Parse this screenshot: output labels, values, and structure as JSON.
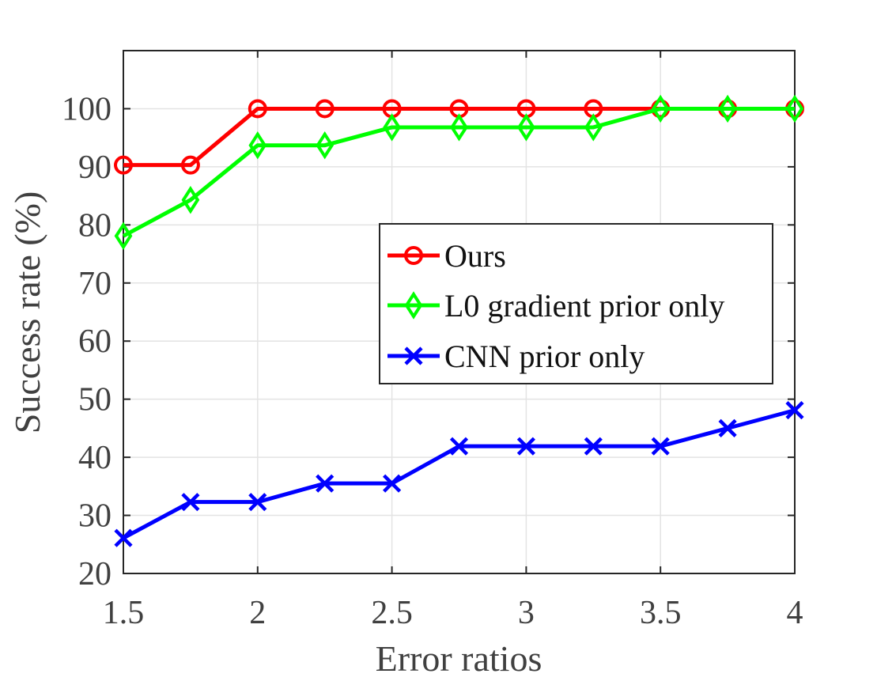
{
  "chart_data": {
    "type": "line",
    "xlabel": "Error ratios",
    "ylabel": "Success rate (%)",
    "xlim": [
      1.5,
      4
    ],
    "ylim": [
      20,
      110
    ],
    "xticks": [
      "1.5",
      "2",
      "2.5",
      "3",
      "3.5",
      "4"
    ],
    "yticks": [
      "20",
      "30",
      "40",
      "50",
      "60",
      "70",
      "80",
      "90",
      "100"
    ],
    "grid": true,
    "legend_position": "center-right",
    "x": [
      1.5,
      1.75,
      2,
      2.25,
      2.5,
      2.75,
      3,
      3.25,
      3.5,
      3.75,
      4
    ],
    "series": [
      {
        "name": "Ours",
        "color": "#ff0000",
        "marker": "circle",
        "values": [
          90.3,
          90.3,
          100,
          100,
          100,
          100,
          100,
          100,
          100,
          100,
          100
        ]
      },
      {
        "name": "L0 gradient prior only",
        "color": "#00ff00",
        "marker": "diamond",
        "values": [
          78.1,
          84.3,
          93.7,
          93.7,
          96.8,
          96.8,
          96.8,
          96.8,
          100,
          100,
          100
        ]
      },
      {
        "name": "CNN prior only",
        "color": "#0000ff",
        "marker": "x",
        "values": [
          26.1,
          32.3,
          32.3,
          35.5,
          35.5,
          41.9,
          41.9,
          41.9,
          41.9,
          45.0,
          48.1
        ]
      }
    ]
  }
}
